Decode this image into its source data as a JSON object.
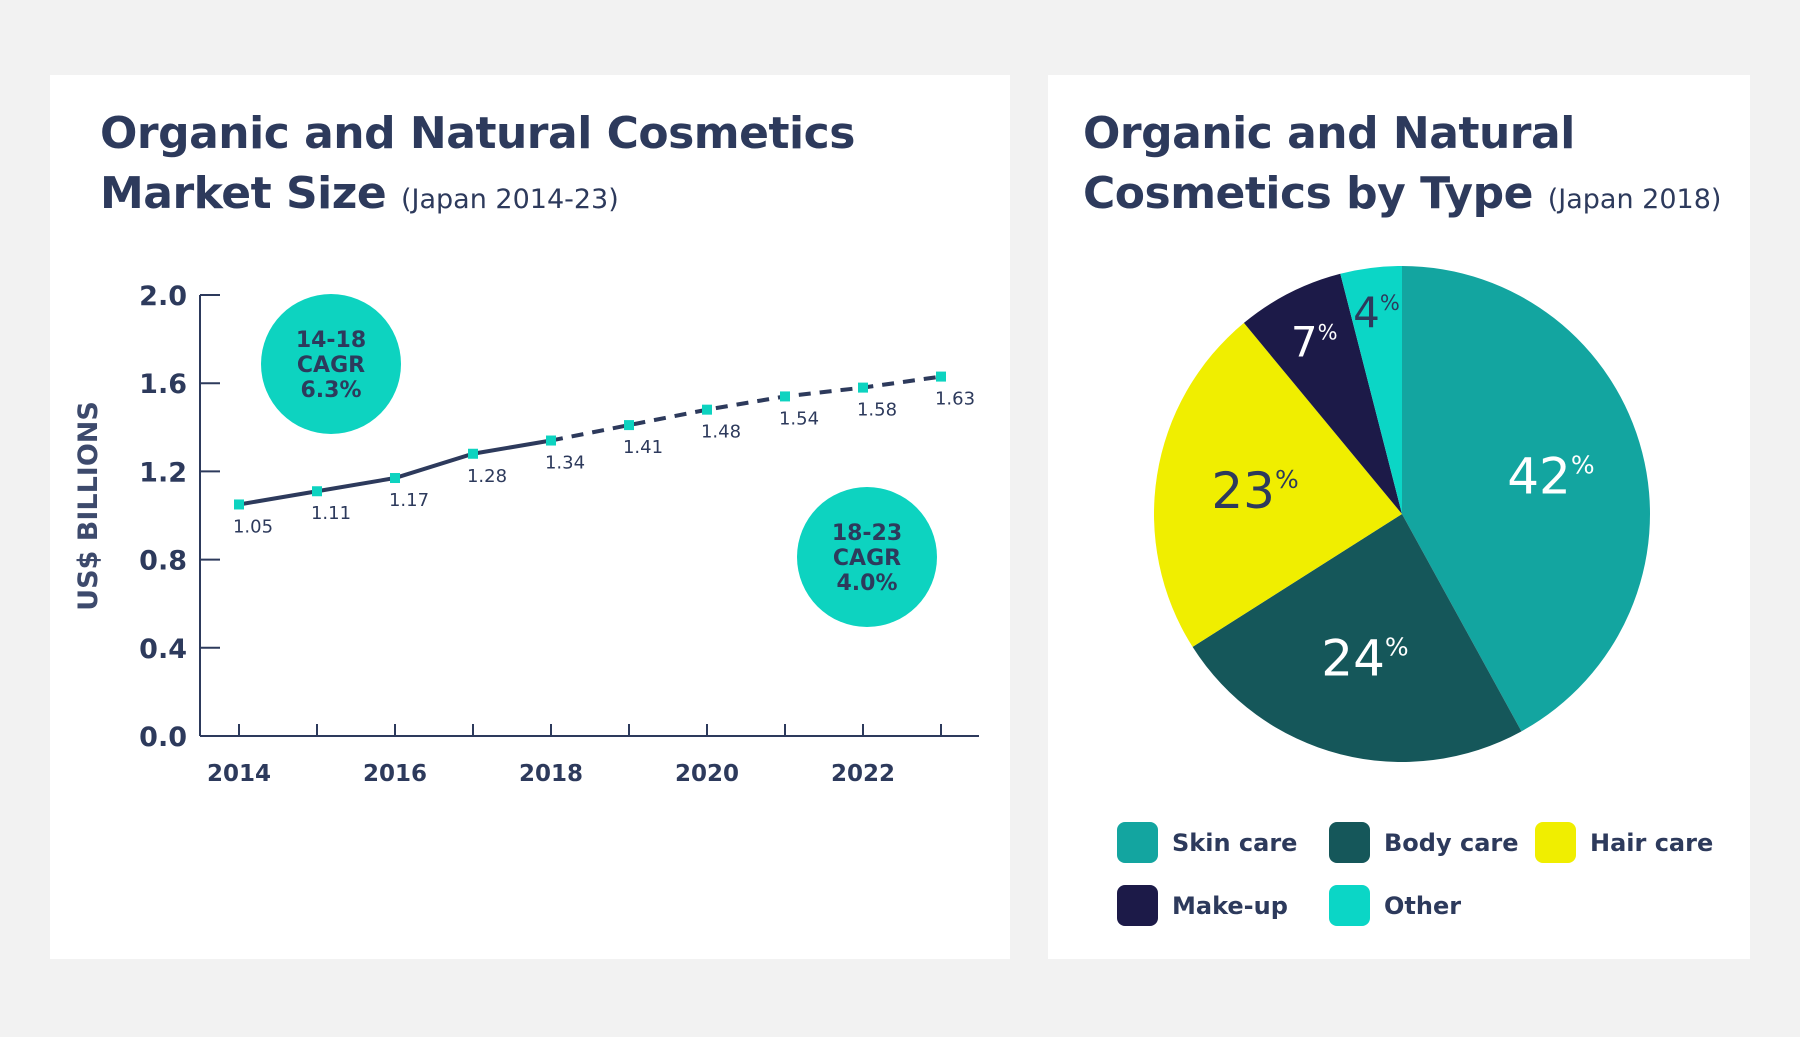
{
  "left": {
    "title_line1": "Organic and Natural Cosmetics",
    "title_line2": "Market Size",
    "subtitle": "(Japan 2014-23)"
  },
  "right": {
    "title_line1": "Organic and Natural",
    "title_line2": "Cosmetics by Type",
    "subtitle": "(Japan 2018)"
  },
  "chart_data": [
    {
      "type": "line",
      "ylabel": "US$ BILLIONS",
      "ylim": [
        0,
        2.0
      ],
      "yticks": [
        "0.0",
        "0.4",
        "0.8",
        "1.2",
        "1.6",
        "2.0"
      ],
      "xticks": [
        "2014",
        "2016",
        "2018",
        "2020",
        "2022"
      ],
      "x": [
        2014,
        2015,
        2016,
        2017,
        2018,
        2019,
        2020,
        2021,
        2022,
        2023
      ],
      "values": [
        1.05,
        1.11,
        1.17,
        1.28,
        1.34,
        1.41,
        1.48,
        1.54,
        1.58,
        1.63
      ],
      "labels": [
        "1.05",
        "1.11",
        "1.17",
        "1.28",
        "1.34",
        "1.41",
        "1.48",
        "1.54",
        "1.58",
        "1.63"
      ],
      "solid_until": 2018,
      "dashed_from": 2018,
      "line_color": "#2d3a5c",
      "marker_color": "#0dd3c0",
      "grid": false,
      "annotations": [
        {
          "lines": [
            "14-18",
            "CAGR",
            "6.3%"
          ]
        },
        {
          "lines": [
            "18-23",
            "CAGR",
            "4.0%"
          ]
        }
      ]
    },
    {
      "type": "pie",
      "start": "top",
      "direction": "clockwise",
      "slices": [
        {
          "name": "Skin care",
          "value": 42,
          "label": "42",
          "color": "#13a5a0",
          "label_color": "#ffffff"
        },
        {
          "name": "Body care",
          "value": 24,
          "label": "24",
          "color": "#15575a",
          "label_color": "#ffffff"
        },
        {
          "name": "Hair care",
          "value": 23,
          "label": "23",
          "color": "#f0ee00",
          "label_color": "#2d3a5c"
        },
        {
          "name": "Make-up",
          "value": 7,
          "label": "7",
          "color": "#1c1a48",
          "label_color": "#ffffff"
        },
        {
          "name": "Other",
          "value": 4,
          "label": "4",
          "color": "#0bd6c6",
          "label_color": "#2d3a5c"
        }
      ],
      "percent_sign": "%",
      "legend_placement": "bottom"
    }
  ]
}
